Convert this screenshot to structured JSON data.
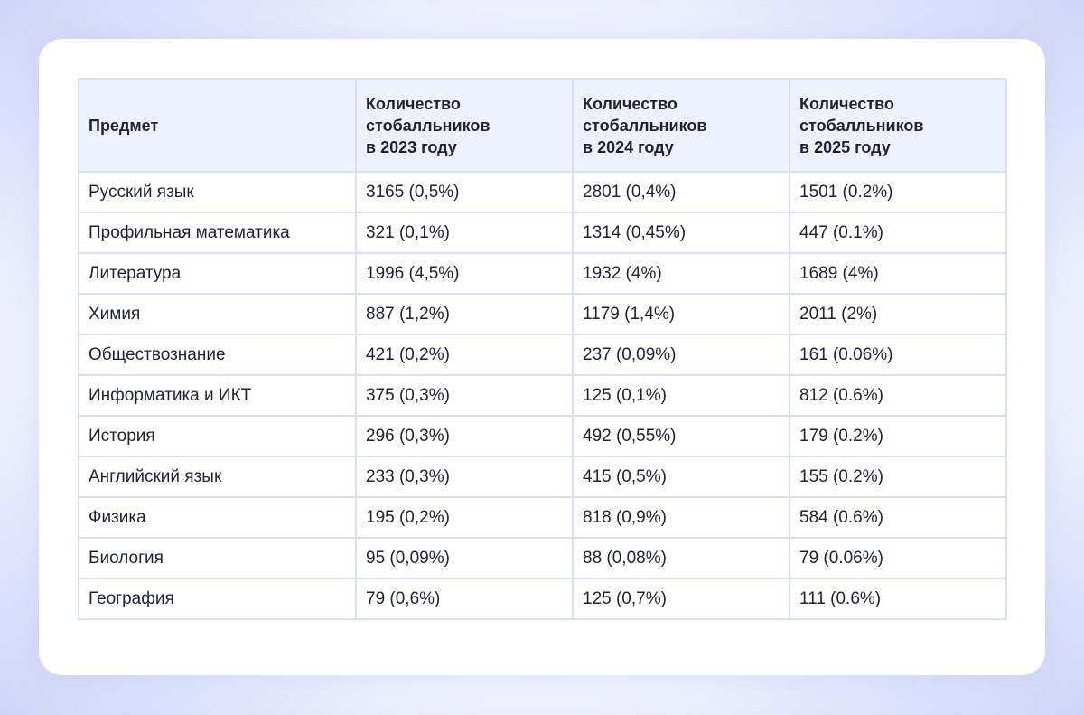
{
  "table": {
    "headers": [
      "Предмет",
      "Количество стобалльников в 2023 году",
      "Количество стобалльников в 2024 году",
      "Количество стобалльников в 2025 году"
    ],
    "header_lines": [
      [
        "Предмет"
      ],
      [
        "Количество",
        "стобалльников",
        "в 2023 году"
      ],
      [
        "Количество",
        "стобалльников",
        "в 2024 году"
      ],
      [
        "Количество",
        "стобалльников",
        "в 2025 году"
      ]
    ],
    "rows": [
      [
        "Русский язык",
        "3165 (0,5%)",
        "2801 (0,4%)",
        "1501 (0.2%)"
      ],
      [
        "Профильная математика",
        "321 (0,1%)",
        "1314 (0,45%)",
        "447 (0.1%)"
      ],
      [
        "Литература",
        "1996 (4,5%)",
        "1932 (4%)",
        "1689 (4%)"
      ],
      [
        "Химия",
        "887 (1,2%)",
        "1179 (1,4%)",
        "2011 (2%)"
      ],
      [
        "Обществознание",
        "421 (0,2%)",
        "237 (0,09%)",
        "161 (0.06%)"
      ],
      [
        "Информатика и ИКТ",
        "375 (0,3%)",
        "125 (0,1%)",
        "812 (0.6%)"
      ],
      [
        "История",
        "296 (0,3%)",
        "492 (0,55%)",
        "179 (0.2%)"
      ],
      [
        "Английский язык",
        "233 (0,3%)",
        "415 (0,5%)",
        "155 (0.2%)"
      ],
      [
        "Физика",
        "195 (0,2%)",
        "818 (0,9%)",
        "584 (0.6%)"
      ],
      [
        "Биология",
        "95 (0,09%)",
        "88 (0,08%)",
        "79 (0.06%)"
      ],
      [
        "География",
        "79 (0,6%)",
        "125 (0,7%)",
        "111 (0.6%)"
      ]
    ]
  },
  "colors": {
    "header_background": "#eef1fe",
    "border": "#d8defa",
    "text": "#1e2233",
    "card": "#ffffff"
  }
}
